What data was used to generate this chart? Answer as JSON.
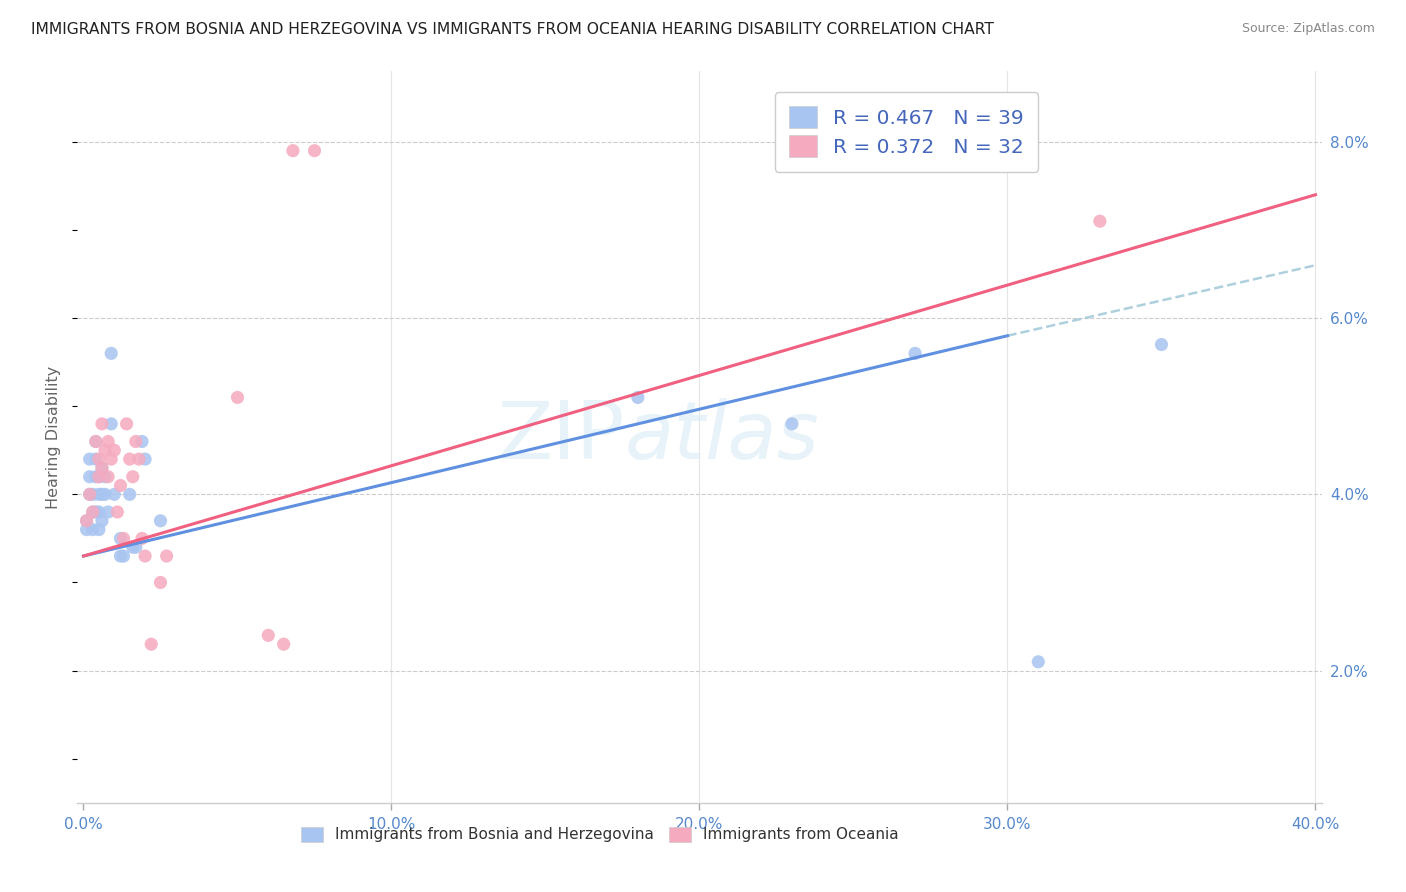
{
  "title": "IMMIGRANTS FROM BOSNIA AND HERZEGOVINA VS IMMIGRANTS FROM OCEANIA HEARING DISABILITY CORRELATION CHART",
  "source": "Source: ZipAtlas.com",
  "legend1_R": "0.467",
  "legend1_N": "39",
  "legend2_R": "0.372",
  "legend2_N": "32",
  "color_blue": "#A8C4F0",
  "color_pink": "#F5AABF",
  "color_blue_line": "#6090E0",
  "color_pink_line": "#F06080",
  "color_dashed": "#A0C8D8",
  "watermark_color": "#D8EAF5",
  "xmin": 0.0,
  "xmax": 0.4,
  "ymin": 0.005,
  "ymax": 0.088,
  "blue_line": [
    [
      0.0,
      0.033
    ],
    [
      0.3,
      0.058
    ]
  ],
  "blue_line_dashed": [
    [
      0.3,
      0.058
    ],
    [
      0.4,
      0.066
    ]
  ],
  "pink_line": [
    [
      0.0,
      0.033
    ],
    [
      0.4,
      0.074
    ]
  ],
  "blue_dots": [
    [
      0.001,
      0.037
    ],
    [
      0.001,
      0.036
    ],
    [
      0.002,
      0.04
    ],
    [
      0.002,
      0.044
    ],
    [
      0.002,
      0.042
    ],
    [
      0.003,
      0.038
    ],
    [
      0.003,
      0.04
    ],
    [
      0.003,
      0.036
    ],
    [
      0.004,
      0.044
    ],
    [
      0.004,
      0.042
    ],
    [
      0.004,
      0.038
    ],
    [
      0.004,
      0.046
    ],
    [
      0.005,
      0.04
    ],
    [
      0.005,
      0.042
    ],
    [
      0.005,
      0.038
    ],
    [
      0.005,
      0.036
    ],
    [
      0.006,
      0.04
    ],
    [
      0.006,
      0.043
    ],
    [
      0.006,
      0.037
    ],
    [
      0.007,
      0.042
    ],
    [
      0.007,
      0.04
    ],
    [
      0.008,
      0.038
    ],
    [
      0.009,
      0.056
    ],
    [
      0.009,
      0.048
    ],
    [
      0.01,
      0.04
    ],
    [
      0.012,
      0.035
    ],
    [
      0.012,
      0.033
    ],
    [
      0.013,
      0.033
    ],
    [
      0.015,
      0.04
    ],
    [
      0.016,
      0.034
    ],
    [
      0.017,
      0.034
    ],
    [
      0.019,
      0.046
    ],
    [
      0.02,
      0.044
    ],
    [
      0.025,
      0.037
    ],
    [
      0.18,
      0.051
    ],
    [
      0.23,
      0.048
    ],
    [
      0.27,
      0.056
    ],
    [
      0.31,
      0.021
    ],
    [
      0.35,
      0.057
    ]
  ],
  "pink_dots": [
    [
      0.001,
      0.037
    ],
    [
      0.002,
      0.04
    ],
    [
      0.003,
      0.038
    ],
    [
      0.004,
      0.046
    ],
    [
      0.005,
      0.044
    ],
    [
      0.005,
      0.042
    ],
    [
      0.006,
      0.048
    ],
    [
      0.006,
      0.043
    ],
    [
      0.007,
      0.045
    ],
    [
      0.008,
      0.046
    ],
    [
      0.008,
      0.042
    ],
    [
      0.009,
      0.044
    ],
    [
      0.01,
      0.045
    ],
    [
      0.011,
      0.038
    ],
    [
      0.012,
      0.041
    ],
    [
      0.013,
      0.035
    ],
    [
      0.014,
      0.048
    ],
    [
      0.015,
      0.044
    ],
    [
      0.016,
      0.042
    ],
    [
      0.017,
      0.046
    ],
    [
      0.018,
      0.044
    ],
    [
      0.019,
      0.035
    ],
    [
      0.02,
      0.033
    ],
    [
      0.022,
      0.023
    ],
    [
      0.025,
      0.03
    ],
    [
      0.027,
      0.033
    ],
    [
      0.05,
      0.051
    ],
    [
      0.06,
      0.024
    ],
    [
      0.065,
      0.023
    ],
    [
      0.068,
      0.079
    ],
    [
      0.075,
      0.079
    ],
    [
      0.33,
      0.071
    ]
  ]
}
